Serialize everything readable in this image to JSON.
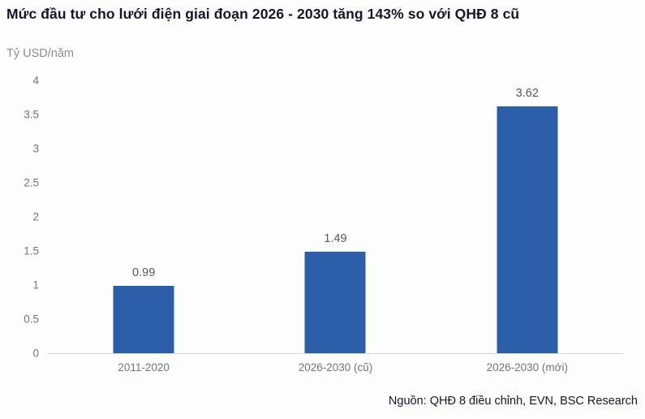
{
  "chart_data": {
    "type": "bar",
    "title": "Mức đầu tư cho lưới điện giai đoạn 2026 - 2030 tăng 143% so với QHĐ 8 cũ",
    "unit_label": "Tỷ USD/năm",
    "categories": [
      "2011-2020",
      "2026-2030 (cũ)",
      "2026-2030 (mới)"
    ],
    "values": [
      0.99,
      1.49,
      3.62
    ],
    "value_labels": [
      "0.99",
      "1.49",
      "3.62"
    ],
    "ylim": [
      0,
      4
    ],
    "yticks": [
      "0",
      "0.5",
      "1",
      "1.5",
      "2",
      "2.5",
      "3",
      "3.5",
      "4"
    ],
    "grid": false,
    "legend": "none",
    "xlabel": "",
    "ylabel": "Tỷ USD/năm"
  },
  "footer": {
    "source": "Nguồn: QHĐ 8 điều chỉnh, EVN, BSC Research"
  },
  "colors": {
    "bar": "#2D5EA8",
    "title_text": "#15162B",
    "axis_text": "#757575",
    "subtitle_text": "#8C8C8C",
    "value_text": "#595959",
    "axis_line": "#D9D9D9"
  }
}
